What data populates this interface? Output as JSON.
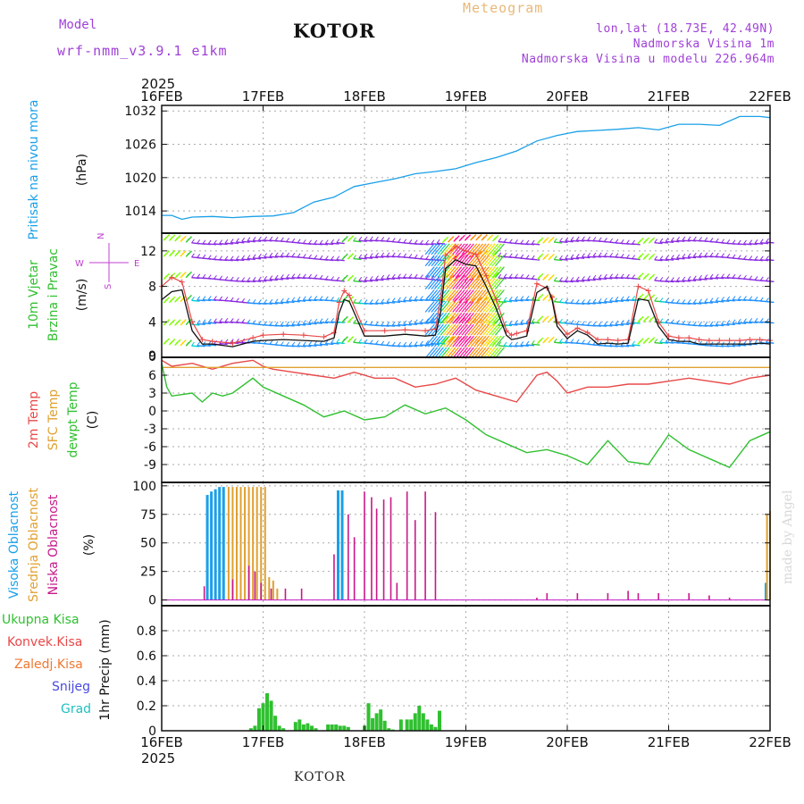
{
  "header": {
    "model_label": "Model",
    "model_name": "wrf-nmm_v3.9.1 e1km",
    "station": "KOTOR",
    "meteogram": "Meteogram",
    "lonlat": "lon,lat (18.73E, 42.49N)",
    "elevation": "Nadmorska Visina 1m",
    "model_elevation": "Nadmorska Visina u modelu 226.964m",
    "year_top": "2025",
    "year_bottom": "2025",
    "footer_station": "KOTOR",
    "watermark": "made by Angel"
  },
  "colors": {
    "pressure": "#1aa0e8",
    "temp2m": "#e84848",
    "sfc": "#e0a030",
    "dewpoint": "#30c030",
    "high_cloud": "#1aa0e8",
    "mid_cloud": "#e0a030",
    "low_cloud": "#c81888",
    "precip_total": "#30c030",
    "convective": "#e84848",
    "freezing": "#f07830",
    "snow": "#4848e0",
    "hail": "#20c0c0",
    "wind_label": "#30c030",
    "compass": "#c040d0",
    "speed_line": "#111111",
    "gust": "#e84848"
  },
  "chart_data": [
    {
      "id": "pressure",
      "type": "line",
      "ylabel": "Pritisak na nivou mora",
      "units": "(hPa)",
      "x_ticks": [
        "16FEB",
        "17FEB",
        "18FEB",
        "19FEB",
        "20FEB",
        "21FEB",
        "22FEB"
      ],
      "x_range_days": [
        0,
        6
      ],
      "ylim": [
        1010,
        1033
      ],
      "yticks": [
        1014,
        1020,
        1026,
        1032
      ],
      "series": [
        {
          "x": [
            0,
            0.1,
            0.2,
            0.3,
            0.5,
            0.7,
            0.9,
            1.1,
            1.3,
            1.5,
            1.7,
            1.9,
            2.1,
            2.3,
            2.5,
            2.7,
            2.9,
            3.1,
            3.3,
            3.5,
            3.7,
            3.9,
            4.1,
            4.3,
            4.5,
            4.7,
            4.9,
            5.1,
            5.3,
            5.5,
            5.7,
            5.9,
            6.0
          ],
          "values": [
            1013.2,
            1013.2,
            1012.5,
            1012.9,
            1013.0,
            1012.8,
            1013.0,
            1013.1,
            1013.7,
            1015.6,
            1016.5,
            1018.4,
            1019.1,
            1019.8,
            1020.7,
            1021.1,
            1021.6,
            1022.7,
            1023.6,
            1024.8,
            1026.6,
            1027.6,
            1028.3,
            1028.5,
            1028.7,
            1029.0,
            1028.6,
            1029.6,
            1029.6,
            1029.4,
            1031.0,
            1031.0,
            1030.8
          ]
        }
      ]
    },
    {
      "id": "wind",
      "type": "line",
      "ylabel1": "10m Vjetar",
      "ylabel2": "Brzina i Pravac",
      "units": "(m/s)",
      "compass": {
        "n": "N",
        "e": "E",
        "w": "W",
        "s": "S"
      },
      "ylim": [
        0,
        14
      ],
      "yticks": [
        4,
        8,
        12
      ],
      "series": [
        {
          "name": "speed",
          "x": [
            0,
            0.1,
            0.2,
            0.3,
            0.4,
            0.5,
            0.7,
            0.9,
            1.0,
            1.2,
            1.4,
            1.6,
            1.7,
            1.75,
            1.8,
            1.85,
            2.0,
            2.2,
            2.4,
            2.6,
            2.7,
            2.75,
            2.8,
            2.9,
            3.0,
            3.1,
            3.2,
            3.3,
            3.4,
            3.45,
            3.5,
            3.6,
            3.7,
            3.8,
            3.85,
            3.9,
            4.0,
            4.1,
            4.2,
            4.3,
            4.4,
            4.5,
            4.6,
            4.7,
            4.8,
            4.9,
            5.0,
            5.1,
            5.2,
            5.3,
            5.4,
            5.5,
            5.6,
            5.7,
            5.8,
            5.9,
            6.0
          ],
          "values": [
            6.5,
            7.4,
            7.6,
            3.0,
            1.5,
            1.5,
            1.2,
            1.8,
            1.9,
            2.0,
            1.9,
            1.8,
            2.2,
            5.0,
            6.5,
            6.3,
            2.4,
            2.4,
            2.6,
            2.4,
            2.5,
            5.0,
            10.0,
            11.0,
            10.5,
            10.3,
            8.0,
            5.5,
            2.5,
            2.0,
            2.1,
            2.4,
            7.3,
            8.0,
            6.5,
            3.5,
            2.1,
            3.0,
            2.5,
            1.5,
            1.6,
            1.5,
            1.6,
            6.6,
            6.4,
            3.5,
            2.0,
            1.8,
            1.8,
            1.5,
            1.5,
            1.5,
            1.5,
            1.5,
            1.5,
            1.6,
            1.5
          ]
        },
        {
          "name": "gust",
          "x": [
            0,
            0.1,
            0.2,
            0.3,
            0.4,
            0.5,
            0.7,
            0.9,
            1.0,
            1.2,
            1.4,
            1.6,
            1.7,
            1.75,
            1.8,
            1.85,
            2.0,
            2.2,
            2.4,
            2.6,
            2.7,
            2.75,
            2.8,
            2.9,
            3.0,
            3.1,
            3.2,
            3.3,
            3.4,
            3.45,
            3.5,
            3.6,
            3.7,
            3.8,
            3.85,
            3.9,
            4.0,
            4.1,
            4.2,
            4.3,
            4.4,
            4.5,
            4.6,
            4.7,
            4.8,
            4.9,
            5.0,
            5.1,
            5.2,
            5.3,
            5.4,
            5.5,
            5.6,
            5.7,
            5.8,
            5.9,
            6.0
          ],
          "values": [
            8.0,
            9.0,
            8.5,
            4.0,
            2.0,
            1.8,
            1.6,
            2.2,
            2.5,
            2.6,
            2.5,
            2.3,
            2.8,
            6.2,
            7.5,
            7.0,
            3.0,
            3.0,
            3.1,
            3.0,
            3.2,
            6.5,
            11.5,
            12.5,
            12.0,
            11.6,
            9.2,
            6.5,
            3.0,
            2.5,
            2.7,
            3.0,
            8.3,
            7.8,
            6.8,
            4.0,
            2.6,
            3.3,
            2.8,
            2.0,
            2.0,
            1.9,
            2.0,
            8.0,
            7.5,
            4.0,
            2.4,
            2.2,
            2.2,
            2.0,
            1.9,
            1.9,
            1.9,
            1.9,
            2.0,
            2.0,
            1.9
          ]
        }
      ]
    },
    {
      "id": "temperature",
      "type": "line",
      "ylabel1": "2m Temp",
      "ylabel2": "SFC Temp",
      "ylabel3": "dewpt Temp",
      "units": "(C)",
      "ylim": [
        -12,
        9
      ],
      "yticks": [
        6,
        3,
        0,
        -3,
        -6,
        -9
      ],
      "series": [
        {
          "name": "2m Temp",
          "x": [
            0,
            0.1,
            0.3,
            0.5,
            0.7,
            0.9,
            1.0,
            1.1,
            1.3,
            1.5,
            1.7,
            1.9,
            2.1,
            2.3,
            2.5,
            2.7,
            2.9,
            3.1,
            3.3,
            3.5,
            3.7,
            3.8,
            3.9,
            4.0,
            4.2,
            4.4,
            4.6,
            4.8,
            5.0,
            5.2,
            5.4,
            5.6,
            5.8,
            6.0
          ],
          "values": [
            8.5,
            7.5,
            8.0,
            7.0,
            8.0,
            8.5,
            7.5,
            7.0,
            6.5,
            6.0,
            5.5,
            6.5,
            5.5,
            5.5,
            4.0,
            4.5,
            5.5,
            3.5,
            2.5,
            1.5,
            6.0,
            6.5,
            5.0,
            3.0,
            4.0,
            4.0,
            4.5,
            4.5,
            5.0,
            5.5,
            5.0,
            4.5,
            5.5,
            6.0
          ]
        },
        {
          "name": "SFC Temp",
          "x": [
            0,
            6
          ],
          "values": [
            7.3,
            7.3
          ]
        },
        {
          "name": "dewpt Temp",
          "x": [
            0,
            0.05,
            0.1,
            0.3,
            0.4,
            0.5,
            0.6,
            0.7,
            0.9,
            1.0,
            1.2,
            1.4,
            1.6,
            1.8,
            2.0,
            2.2,
            2.4,
            2.6,
            2.8,
            3.0,
            3.2,
            3.4,
            3.6,
            3.8,
            4.0,
            4.2,
            4.4,
            4.6,
            4.8,
            5.0,
            5.2,
            5.4,
            5.6,
            5.8,
            6.0
          ],
          "values": [
            8.0,
            4.0,
            2.5,
            3.0,
            1.5,
            3.0,
            2.5,
            3.0,
            5.5,
            4.0,
            2.5,
            1.0,
            -1.0,
            0.0,
            -1.5,
            -1.0,
            1.0,
            -0.5,
            0.5,
            -1.5,
            -4.0,
            -5.5,
            -7.0,
            -6.5,
            -7.5,
            -9.0,
            -5.0,
            -8.5,
            -9.0,
            -4.0,
            -6.5,
            -8.0,
            -9.5,
            -5.0,
            -3.5
          ]
        }
      ]
    },
    {
      "id": "clouds",
      "type": "bar",
      "ylabel1": "Visoka Oblacnost",
      "ylabel2": "Srednja Oblacnost",
      "ylabel3": "Niska Oblacnost",
      "units": "(%)",
      "ylim": [
        0,
        100
      ],
      "yticks": [
        0,
        25,
        50,
        75,
        100
      ],
      "series": [
        {
          "name": "Visoka Oblacnost",
          "x": [
            0.45,
            0.49,
            0.53,
            0.57,
            0.61,
            1.74,
            1.78,
            5.96
          ],
          "values": [
            92,
            95,
            97,
            99,
            99,
            96,
            96,
            15
          ]
        },
        {
          "name": "Srednja Oblacnost",
          "x": [
            0.66,
            0.7,
            0.74,
            0.78,
            0.82,
            0.86,
            0.9,
            0.94,
            0.98,
            1.02,
            1.06,
            1.1,
            1.14,
            5.97,
            6.0
          ],
          "values": [
            99,
            99,
            99,
            99,
            99,
            99,
            99,
            99,
            99,
            99,
            20,
            17,
            10,
            75,
            78
          ]
        },
        {
          "name": "Niska Oblacnost",
          "x": [
            0.42,
            0.7,
            0.86,
            0.92,
            0.98,
            1.08,
            1.22,
            1.38,
            1.7,
            1.84,
            1.9,
            2.0,
            2.07,
            2.12,
            2.19,
            2.26,
            2.32,
            2.42,
            2.5,
            2.6,
            2.7,
            3.7,
            3.8,
            4.1,
            4.4,
            4.6,
            4.7,
            4.9,
            5.2,
            5.4,
            5.6
          ],
          "values": [
            12,
            18,
            30,
            25,
            15,
            10,
            10,
            10,
            40,
            75,
            55,
            95,
            90,
            80,
            88,
            90,
            15,
            95,
            70,
            95,
            77,
            2,
            6,
            6,
            6,
            8,
            6,
            6,
            6,
            4,
            2
          ]
        }
      ]
    },
    {
      "id": "precip",
      "type": "bar",
      "ylabel1": "1hr Precip",
      "units": "(mm)",
      "legend": [
        "Ukupna Kisa",
        "Konvek.Kisa",
        "Zaledj.Kisa",
        "Snijeg",
        "Grad"
      ],
      "ylim": [
        0,
        1.0
      ],
      "yticks": [
        "0.8",
        "0.6",
        "0.4",
        "0.2",
        "0"
      ],
      "series": [
        {
          "name": "Ukupna Kisa",
          "x": [
            0.88,
            0.92,
            0.96,
            1.0,
            1.04,
            1.08,
            1.12,
            1.16,
            1.2,
            1.32,
            1.36,
            1.4,
            1.44,
            1.48,
            1.52,
            1.64,
            1.68,
            1.72,
            1.76,
            1.8,
            1.84,
            2.0,
            2.04,
            2.08,
            2.12,
            2.16,
            2.2,
            2.24,
            2.28,
            2.36,
            2.42,
            2.46,
            2.5,
            2.54,
            2.58,
            2.62,
            2.66,
            2.7,
            2.74
          ],
          "values": [
            0.02,
            0.04,
            0.18,
            0.22,
            0.3,
            0.24,
            0.12,
            0.04,
            0.02,
            0.07,
            0.09,
            0.05,
            0.06,
            0.04,
            0.02,
            0.05,
            0.05,
            0.05,
            0.04,
            0.04,
            0.03,
            0.04,
            0.22,
            0.1,
            0.14,
            0.17,
            0.08,
            0.02,
            0.01,
            0.09,
            0.09,
            0.09,
            0.14,
            0.2,
            0.14,
            0.09,
            0.05,
            0.03,
            0.16
          ]
        }
      ]
    }
  ]
}
